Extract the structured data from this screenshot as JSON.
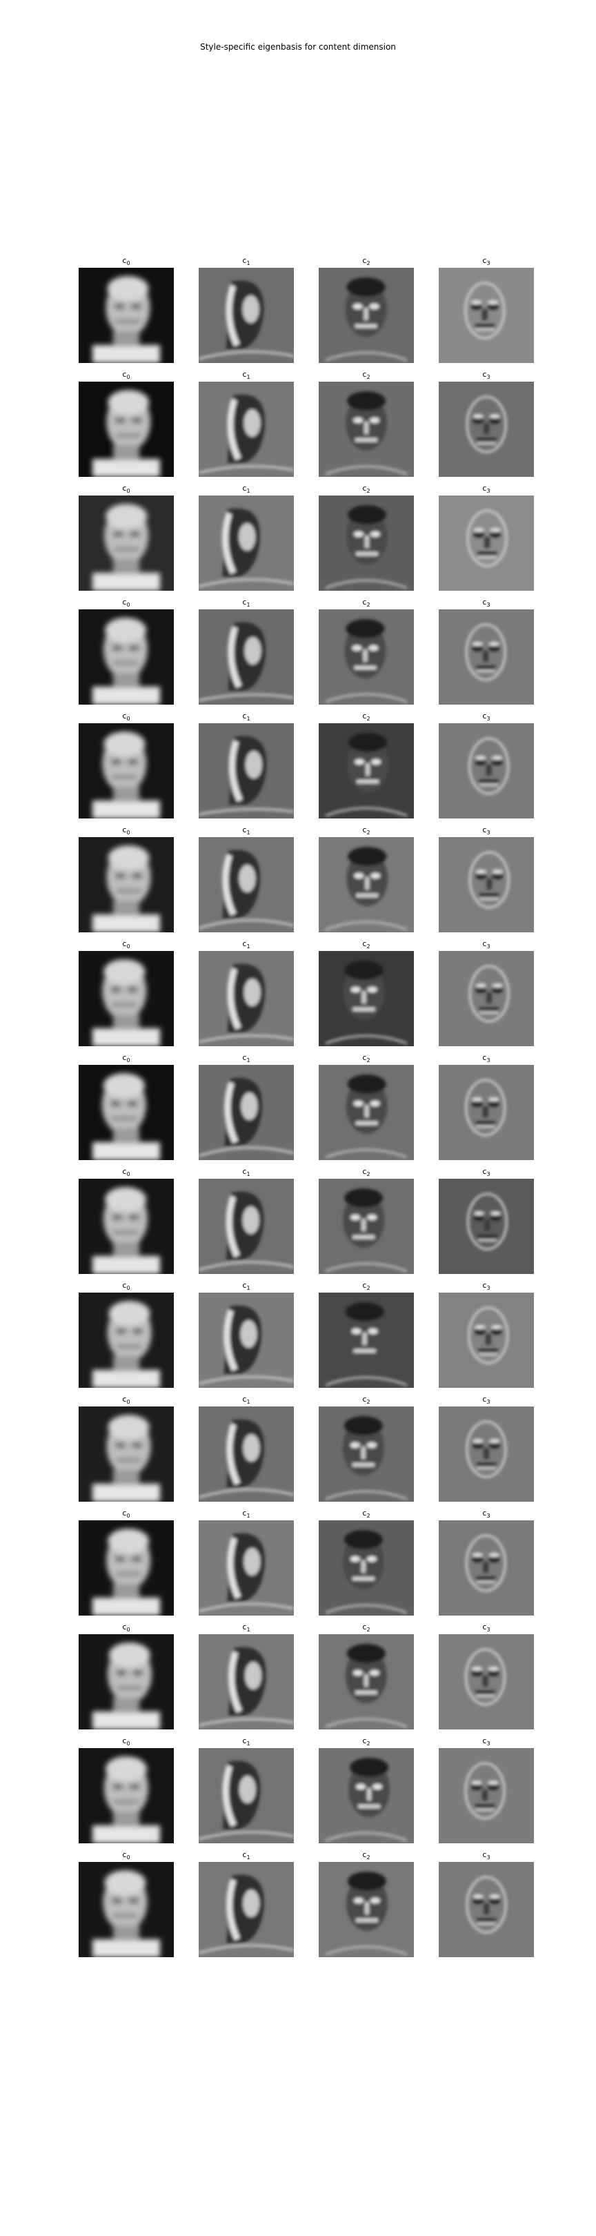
{
  "figure": {
    "title": "Style-specific eigenbasis for content dimension"
  },
  "components": [
    {
      "symbol": "c",
      "index": "0",
      "kind": "mean"
    },
    {
      "symbol": "c",
      "index": "1",
      "kind": "profile"
    },
    {
      "symbol": "c",
      "index": "2",
      "kind": "frontal"
    },
    {
      "symbol": "c",
      "index": "3",
      "kind": "detail"
    }
  ],
  "rows": [
    {
      "style": 0,
      "bg": [
        "#101010",
        "#6e6e6e",
        "#6a6a6a",
        "#8a8a8a"
      ]
    },
    {
      "style": 1,
      "bg": [
        "#0c0c0c",
        "#777777",
        "#6d6d6d",
        "#6f6f6f"
      ]
    },
    {
      "style": 2,
      "bg": [
        "#2a2a2a",
        "#7a7a7a",
        "#5e5e5e",
        "#8c8c8c"
      ]
    },
    {
      "style": 3,
      "bg": [
        "#141414",
        "#6b6b6b",
        "#6f6f6f",
        "#7a7a7a"
      ]
    },
    {
      "style": 4,
      "bg": [
        "#141414",
        "#6a6a6a",
        "#3e3e3e",
        "#7a7a7a"
      ]
    },
    {
      "style": 5,
      "bg": [
        "#1c1c1c",
        "#747474",
        "#7a7a7a",
        "#7e7e7e"
      ]
    },
    {
      "style": 6,
      "bg": [
        "#121212",
        "#777777",
        "#3a3a3a",
        "#7b7b7b"
      ]
    },
    {
      "style": 7,
      "bg": [
        "#0f0f0f",
        "#6d6d6d",
        "#707070",
        "#7a7a7a"
      ]
    },
    {
      "style": 8,
      "bg": [
        "#151515",
        "#707070",
        "#6e6e6e",
        "#5a5a5a"
      ]
    },
    {
      "style": 9,
      "bg": [
        "#1a1a1a",
        "#7c7c7c",
        "#494949",
        "#828282"
      ]
    },
    {
      "style": 10,
      "bg": [
        "#1d1d1d",
        "#6f6f6f",
        "#6a6a6a",
        "#7a7a7a"
      ]
    },
    {
      "style": 11,
      "bg": [
        "#121212",
        "#7b7b7b",
        "#5e5e5e",
        "#7a7a7a"
      ]
    },
    {
      "style": 12,
      "bg": [
        "#151515",
        "#7a7a7a",
        "#767676",
        "#7e7e7e"
      ]
    },
    {
      "style": 13,
      "bg": [
        "#141414",
        "#737373",
        "#727272",
        "#7c7c7c"
      ]
    },
    {
      "style": 14,
      "bg": [
        "#151515",
        "#787878",
        "#787878",
        "#7a7a7a"
      ]
    }
  ]
}
